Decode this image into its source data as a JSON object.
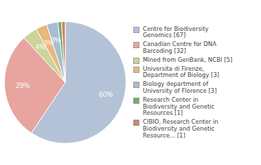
{
  "chart_data": {
    "type": "pie",
    "categories": [
      "Centre for Biodiversity\nGenomics [67]",
      "Canadian Centre for DNA\nBarcoding [32]",
      "Mined from GenBank, NCBI [5]",
      "Universita di Firenze,\nDepartment of Biology [3]",
      "Biology department of\nUniversity of Florence [3]",
      "Research Center in\nBiodiversity and Genetic\nResources [1]",
      "CIBIO, Research Center in\nBiodiversity and Genetic\nResource... [1]"
    ],
    "values": [
      60,
      29,
      4,
      3,
      3,
      1,
      1
    ],
    "value_labels": [
      "60%",
      "29%",
      "4%",
      "3%",
      "3%",
      null,
      null
    ],
    "colors": [
      "#b4c2d8",
      "#e8a49e",
      "#cdd49a",
      "#e8b87c",
      "#a8bcd4",
      "#6ab06a",
      "#d4826a"
    ],
    "data_labels": true,
    "legend": "right"
  }
}
